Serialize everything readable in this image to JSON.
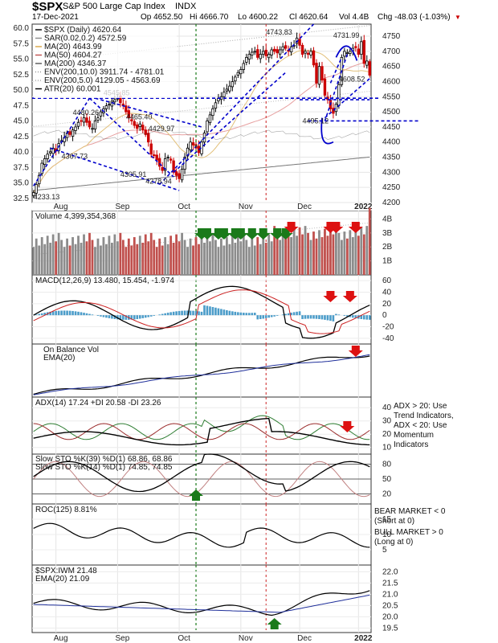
{
  "chart_data": {
    "type": "candlestick-multi-panel",
    "header": {
      "symbol": "$SPX",
      "name": "S&P 500 Large Cap Index",
      "exchange": "INDX",
      "date": "17-Dec-2021",
      "open": "Op 4652.50",
      "high": "Hi 4666.70",
      "low": "Lo 4600.22",
      "close": "Cl 4620.64",
      "vol": "Vol 4.4B",
      "chg": "Chg -48.03 (-1.03%)"
    },
    "x_months": [
      "Aug",
      "Sep",
      "Oct",
      "Nov",
      "Dec",
      "2022"
    ],
    "main": {
      "legend": [
        {
          "text": "$SPX (Daily) 4620.64",
          "color": "#000000",
          "icon": "candle-icon"
        },
        {
          "text": "SAR(0.02,0.2) 4572.59",
          "color": "#8a8a8a",
          "icon": "dot-icon"
        },
        {
          "text": "MA(20) 4643.99",
          "color": "#d9a441",
          "icon": "line-icon"
        },
        {
          "text": "MA(50) 4604.27",
          "color": "#c0504d",
          "icon": "line-icon"
        },
        {
          "text": "MA(200) 4346.37",
          "color": "#555555",
          "icon": "line-icon"
        },
        {
          "text": "ENV(200,10.0) 3911.74 - 4781.01",
          "color": "#999999",
          "icon": "dotted-line-icon"
        },
        {
          "text": "ENV(200,5.0) 4129.05 - 4563.69",
          "color": "#aaaaaa",
          "icon": "dotted-line-icon"
        },
        {
          "text": "ATR(20) 60.001",
          "color": "#000000",
          "icon": "line-icon"
        }
      ],
      "right_ticks": [
        4200,
        4250,
        4300,
        4350,
        4400,
        4450,
        4500,
        4550,
        4600,
        4650,
        4700,
        4750
      ],
      "left_ticks": [
        "60.0",
        "57.5",
        "55.0",
        "52.5",
        "50.0",
        "47.5",
        "45.0",
        "42.5",
        "40.0",
        "37.5",
        "35.0",
        "32.5"
      ],
      "annotations": [
        "4743.83",
        "4731.99",
        "4480.26",
        "4545.85",
        "4465.40",
        "4429.97",
        "4367.73",
        "4305.91",
        "4278.94",
        "4233.13",
        "4608.52",
        "4495.12"
      ],
      "close_series": [
        4233,
        4260,
        4290,
        4330,
        4345,
        4360,
        4368,
        4380,
        4370,
        4395,
        4405,
        4415,
        4430,
        4425,
        4440,
        4450,
        4465,
        4470,
        4480,
        4465,
        4450,
        4445,
        4470,
        4480,
        4500,
        4510,
        4520,
        4525,
        4535,
        4540,
        4546,
        4530,
        4520,
        4500,
        4480,
        4470,
        4455,
        4445,
        4460,
        4440,
        4425,
        4400,
        4360,
        4355,
        4340,
        4320,
        4306,
        4345,
        4350,
        4340,
        4300,
        4290,
        4279,
        4310,
        4350,
        4380,
        4400,
        4390,
        4380,
        4365,
        4400,
        4430,
        4470,
        4490,
        4510,
        4530,
        4545,
        4550,
        4565,
        4575,
        4585,
        4600,
        4615,
        4630,
        4640,
        4660,
        4680,
        4690,
        4697,
        4700,
        4680,
        4690,
        4700,
        4685,
        4690,
        4705,
        4700,
        4695,
        4705,
        4715,
        4710,
        4700,
        4715,
        4720,
        4744,
        4720,
        4690,
        4700,
        4690,
        4700,
        4655,
        4595,
        4650,
        4605,
        4555,
        4540,
        4510,
        4495,
        4525,
        4590,
        4680,
        4700,
        4695,
        4700,
        4710,
        4712,
        4690,
        4732,
        4660,
        4668,
        4621
      ]
    },
    "volume": {
      "legend": "Volume 4,399,354,368",
      "ticks": [
        "4B",
        "3B",
        "2B",
        "1B"
      ]
    },
    "macd": {
      "legend": "MACD(12,26,9) 13.480, 15.454, -1.974",
      "ticks": [
        "60",
        "40",
        "20",
        "0",
        "-20",
        "-40"
      ]
    },
    "obv": {
      "legend": [
        "On Balance Vol",
        "EMA(20)"
      ]
    },
    "adx": {
      "legend": "ADX(14) 17.24 +DI 20.58 -DI 23.26",
      "ticks": [
        "40",
        "30",
        "20",
        "10"
      ],
      "note": [
        "ADX > 20: Use",
        "Trend Indicators,",
        "ADX < 20: Use",
        "Momentum",
        "Indicators"
      ]
    },
    "sto": {
      "legend": [
        "Slow STO %K(39) %D(1) 68.86, 68.86",
        "Slow STO %K(14) %D(1) 74.85, 74.85"
      ],
      "ticks": [
        "80",
        "50",
        "20"
      ]
    },
    "roc": {
      "legend": "ROC(125) 8.81%",
      "ticks": [
        "15",
        "10",
        "5"
      ],
      "note_bear": [
        "BEAR MARKET < 0",
        "(Short at 0)"
      ],
      "note_bull": [
        "BULL MARKET > 0",
        "(Long at 0)"
      ]
    },
    "ratio": {
      "legend": [
        "$SPX:IWM 21.48",
        "EMA(20) 21.09"
      ],
      "ticks": [
        "22.0",
        "21.5",
        "21.0",
        "20.5",
        "20.0",
        "19.5"
      ]
    },
    "colors": {
      "up": "#ffffff",
      "down": "#cc0000",
      "green_arrow": "#1a7a1a",
      "red_arrow": "#dd1111",
      "trend": "#0000cc",
      "grid": "#dcdcdc"
    }
  }
}
